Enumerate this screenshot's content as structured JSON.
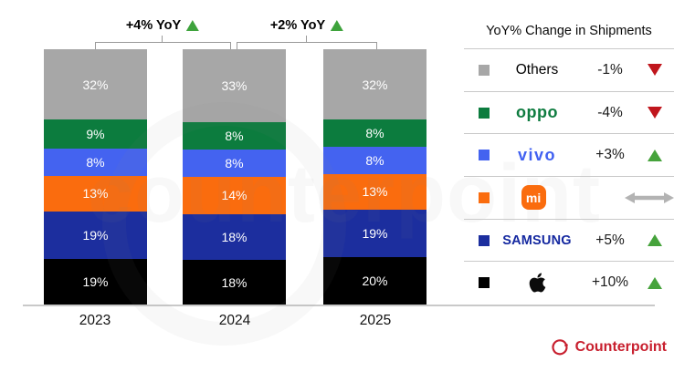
{
  "chart_data": {
    "type": "bar",
    "subtype": "stacked-100-percent",
    "title": "",
    "categories": [
      "2023",
      "2024",
      "2025"
    ],
    "series_order": "top-to-bottom",
    "series": [
      {
        "name": "Others",
        "color": "#a7a7a7",
        "values": [
          32,
          33,
          32
        ],
        "labels": [
          "32%",
          "33%",
          "32%"
        ]
      },
      {
        "name": "OPPO",
        "color": "#0c7c3e",
        "values": [
          9,
          8,
          8
        ],
        "labels": [
          "9%",
          "8%",
          "8%"
        ]
      },
      {
        "name": "vivo",
        "color": "#4463f0",
        "values": [
          8,
          8,
          8
        ],
        "labels": [
          "8%",
          "8%",
          "8%"
        ]
      },
      {
        "name": "Xiaomi",
        "color": "#fa6c0e",
        "values": [
          13,
          14,
          13
        ],
        "labels": [
          "13%",
          "14%",
          "13%"
        ]
      },
      {
        "name": "Samsung",
        "color": "#1c2e9e",
        "values": [
          19,
          18,
          19
        ],
        "labels": [
          "19%",
          "18%",
          "19%"
        ]
      },
      {
        "name": "Apple",
        "color": "#000000",
        "values": [
          19,
          18,
          20
        ],
        "labels": [
          "19%",
          "18%",
          "20%"
        ]
      }
    ],
    "annotations": [
      {
        "label": "+4% YoY",
        "trend": "up",
        "between": [
          "2023",
          "2024"
        ]
      },
      {
        "label": "+2% YoY",
        "trend": "up",
        "between": [
          "2024",
          "2025"
        ]
      }
    ],
    "value_format": "percent",
    "grid": false,
    "legend_position": "right"
  },
  "legend": {
    "title": "YoY% Change in Shipments",
    "rows": [
      {
        "brand": "Others",
        "logo": "others",
        "logo_text": "Others",
        "swatch": "#a7a7a7",
        "change": "-1%",
        "trend": "down"
      },
      {
        "brand": "OPPO",
        "logo": "oppo",
        "logo_text": "oppo",
        "swatch": "#0c7c3e",
        "change": "-4%",
        "trend": "down"
      },
      {
        "brand": "vivo",
        "logo": "vivo",
        "logo_text": "vivo",
        "swatch": "#4463f0",
        "change": "+3%",
        "trend": "up"
      },
      {
        "brand": "Xiaomi",
        "logo": "mi",
        "logo_text": "mi",
        "swatch": "#fa6c0e",
        "change": "",
        "trend": "flat"
      },
      {
        "brand": "Samsung",
        "logo": "samsung",
        "logo_text": "SAMSUNG",
        "swatch": "#1c2e9e",
        "change": "+5%",
        "trend": "up"
      },
      {
        "brand": "Apple",
        "logo": "apple",
        "logo_text": "",
        "swatch": "#000000",
        "change": "+10%",
        "trend": "up"
      }
    ]
  },
  "branding": {
    "name": "Counterpoint",
    "color": "#c8202f"
  },
  "watermark": {
    "text": "counterpoint"
  },
  "colors": {
    "trend_up": "#46a33c",
    "trend_down": "#c0161d",
    "trend_flat": "#b3b3b3",
    "axis_line": "#c9c9c9",
    "bracket": "#9a9a9a",
    "bar_label": "#ffffff"
  }
}
